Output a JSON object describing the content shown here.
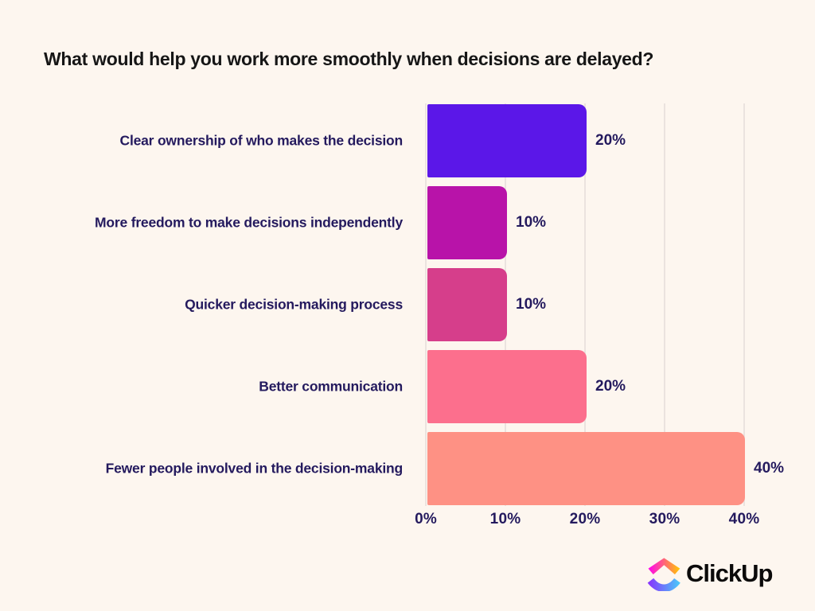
{
  "title": "What would help you work more smoothly when decisions are delayed?",
  "chart_data": {
    "type": "bar",
    "orientation": "horizontal",
    "title": "What would help you work more smoothly when decisions are delayed?",
    "categories": [
      "Clear ownership of who makes the decision",
      "More freedom to make decisions independently",
      "Quicker decision-making process",
      "Better communication",
      "Fewer people involved in the decision-making"
    ],
    "values": [
      20,
      10,
      10,
      20,
      40
    ],
    "value_labels": [
      "20%",
      "10%",
      "10%",
      "20%",
      "40%"
    ],
    "bar_colors": [
      "#5B17E8",
      "#B813A9",
      "#D63E8B",
      "#FC6F8D",
      "#FE9184"
    ],
    "x_ticks": [
      "0%",
      "10%",
      "20%",
      "30%",
      "40%"
    ],
    "xlabel": "",
    "ylabel": "",
    "xlim": [
      0,
      40
    ],
    "grid": true,
    "legend": false
  },
  "colors": {
    "background": "#FDF6EF",
    "gridline": "#EBE3DF",
    "label_text": "#241A5E",
    "title_text": "#161616"
  },
  "branding": {
    "logo_text": "ClickUp"
  }
}
